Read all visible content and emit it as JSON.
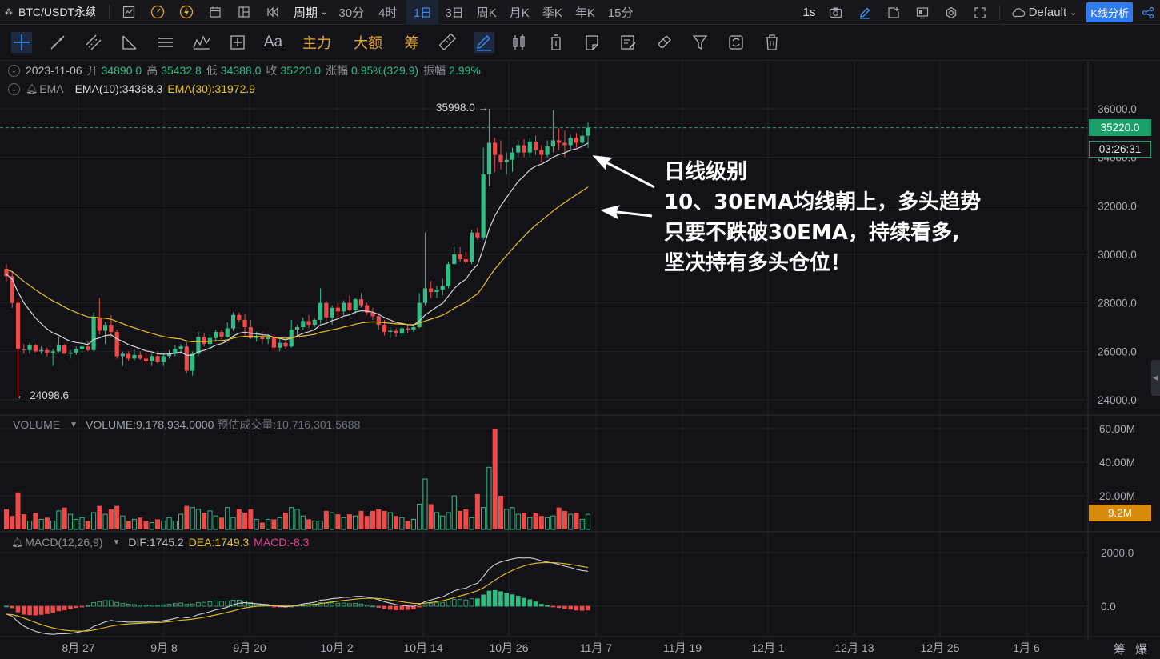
{
  "topbar": {
    "symbol": "BTC/USDT永续",
    "period_dropdown": "周期",
    "periods": [
      "30分",
      "4时",
      "1日",
      "3日",
      "周K",
      "月K",
      "季K",
      "年K",
      "15分"
    ],
    "active_period": "1日",
    "interval": "1s",
    "theme_label": "Default",
    "kline_button": "K线分析"
  },
  "toolbar": {
    "text_tool": "Aa",
    "zhuli": "主力",
    "dae": "大额",
    "chou": "筹"
  },
  "ohlc": {
    "date": "2023-11-06",
    "open_label": "开",
    "open": "34890.0",
    "high_label": "高",
    "high": "35432.8",
    "low_label": "低",
    "low": "34388.0",
    "close_label": "收",
    "close": "35220.0",
    "change_label": "涨幅",
    "change": "0.95%(329.9)",
    "amp_label": "振幅",
    "amp": "2.99%"
  },
  "ema": {
    "name": "EMA",
    "ema10": "EMA(10):34368.3",
    "ema30": "EMA(30):31972.9"
  },
  "price_axis": {
    "ticks": [
      "36000.0",
      "34000.0",
      "32000.0",
      "30000.0",
      "28000.0",
      "26000.0",
      "24000.0"
    ],
    "current_price": "35220.0",
    "countdown": "03:26:31",
    "high_marker": "35998.0 →",
    "low_marker": "← 24098.6"
  },
  "volume": {
    "name": "VOLUME",
    "value": "VOLUME:9,178,934.0000",
    "estimate": "预估成交量:10,716,301.5688",
    "ticks": [
      "60.00M",
      "40.00M",
      "20.00M"
    ],
    "current_tag": "9.2M"
  },
  "macd": {
    "name": "MACD(12,26,9)",
    "dif": "DIF:1745.2",
    "dea": "DEA:1749.3",
    "macd": "MACD:-8.3",
    "ticks": [
      "2000.0",
      "0.0"
    ]
  },
  "time_axis": [
    "8月 27",
    "9月 8",
    "9月 20",
    "10月 2",
    "10月 14",
    "10月 26",
    "11月 7",
    "11月 19",
    "12月 1",
    "12月 13",
    "12月 25",
    "1月 6"
  ],
  "bottom_right": [
    "筹",
    "爆"
  ],
  "annotation": {
    "line1": "日线级别",
    "line2": "10、30EMA均线朝上，多头趋势",
    "line3": "只要不跌破30EMA，持续看多,",
    "line4": "坚决持有多头仓位！"
  },
  "colors": {
    "up": "#2fbd85",
    "down": "#ef4a4a",
    "ema10": "#d4d4d8",
    "ema30": "#e8c21e",
    "accent": "#2f7bf5",
    "volume_tag": "#d98b0b"
  },
  "chart_data": {
    "type": "candlestick",
    "y_range": [
      23500,
      36500
    ],
    "candles": [
      {
        "o": 29400,
        "h": 29600,
        "l": 28900,
        "c": 29100
      },
      {
        "o": 29100,
        "h": 29300,
        "l": 27800,
        "c": 28000
      },
      {
        "o": 28000,
        "h": 28200,
        "l": 24098,
        "c": 26100
      },
      {
        "o": 26100,
        "h": 26300,
        "l": 25900,
        "c": 26050
      },
      {
        "o": 26050,
        "h": 26350,
        "l": 25900,
        "c": 26250
      },
      {
        "o": 26250,
        "h": 26300,
        "l": 25950,
        "c": 26000
      },
      {
        "o": 26000,
        "h": 26200,
        "l": 25900,
        "c": 26050
      },
      {
        "o": 26050,
        "h": 26150,
        "l": 25800,
        "c": 25950
      },
      {
        "o": 25950,
        "h": 26100,
        "l": 25400,
        "c": 26000
      },
      {
        "o": 26000,
        "h": 26600,
        "l": 25950,
        "c": 26250
      },
      {
        "o": 26250,
        "h": 26300,
        "l": 25900,
        "c": 25900
      },
      {
        "o": 25900,
        "h": 26050,
        "l": 25700,
        "c": 25950
      },
      {
        "o": 25950,
        "h": 26200,
        "l": 25850,
        "c": 26100
      },
      {
        "o": 26100,
        "h": 26250,
        "l": 25950,
        "c": 26200
      },
      {
        "o": 26200,
        "h": 26400,
        "l": 26000,
        "c": 26050
      },
      {
        "o": 26050,
        "h": 27600,
        "l": 26000,
        "c": 27400
      },
      {
        "o": 27400,
        "h": 28200,
        "l": 26700,
        "c": 26850
      },
      {
        "o": 26850,
        "h": 27200,
        "l": 26300,
        "c": 27100
      },
      {
        "o": 27100,
        "h": 27500,
        "l": 26600,
        "c": 26800
      },
      {
        "o": 26800,
        "h": 26900,
        "l": 25700,
        "c": 25800
      },
      {
        "o": 25800,
        "h": 26000,
        "l": 25400,
        "c": 25900
      },
      {
        "o": 25900,
        "h": 26000,
        "l": 25600,
        "c": 25700
      },
      {
        "o": 25700,
        "h": 26100,
        "l": 25600,
        "c": 25850
      },
      {
        "o": 25850,
        "h": 26000,
        "l": 25650,
        "c": 25700
      },
      {
        "o": 25700,
        "h": 25950,
        "l": 25500,
        "c": 25600
      },
      {
        "o": 25600,
        "h": 25900,
        "l": 25400,
        "c": 25800
      },
      {
        "o": 25800,
        "h": 26000,
        "l": 25500,
        "c": 25550
      },
      {
        "o": 25550,
        "h": 25900,
        "l": 25400,
        "c": 25800
      },
      {
        "o": 25800,
        "h": 26050,
        "l": 25700,
        "c": 25900
      },
      {
        "o": 25900,
        "h": 26250,
        "l": 25800,
        "c": 26100
      },
      {
        "o": 26100,
        "h": 26300,
        "l": 26000,
        "c": 26200
      },
      {
        "o": 26200,
        "h": 26400,
        "l": 25100,
        "c": 25200
      },
      {
        "o": 25200,
        "h": 26000,
        "l": 25000,
        "c": 25900
      },
      {
        "o": 25900,
        "h": 26800,
        "l": 25800,
        "c": 26600
      },
      {
        "o": 26600,
        "h": 26750,
        "l": 26200,
        "c": 26300
      },
      {
        "o": 26300,
        "h": 26700,
        "l": 26100,
        "c": 26550
      },
      {
        "o": 26550,
        "h": 26900,
        "l": 26400,
        "c": 26800
      },
      {
        "o": 26800,
        "h": 26900,
        "l": 26500,
        "c": 26600
      },
      {
        "o": 26600,
        "h": 27200,
        "l": 26550,
        "c": 26950
      },
      {
        "o": 26950,
        "h": 27600,
        "l": 26850,
        "c": 27500
      },
      {
        "o": 27500,
        "h": 27600,
        "l": 27200,
        "c": 27300
      },
      {
        "o": 27300,
        "h": 27550,
        "l": 26600,
        "c": 27000
      },
      {
        "o": 27000,
        "h": 27300,
        "l": 26500,
        "c": 26550
      },
      {
        "o": 26550,
        "h": 26800,
        "l": 26400,
        "c": 26600
      },
      {
        "o": 26600,
        "h": 26800,
        "l": 26300,
        "c": 26500
      },
      {
        "o": 26500,
        "h": 26700,
        "l": 26300,
        "c": 26600
      },
      {
        "o": 26600,
        "h": 26700,
        "l": 26000,
        "c": 26150
      },
      {
        "o": 26150,
        "h": 26500,
        "l": 26000,
        "c": 26350
      },
      {
        "o": 26350,
        "h": 26400,
        "l": 26100,
        "c": 26200
      },
      {
        "o": 26200,
        "h": 27300,
        "l": 26150,
        "c": 26900
      },
      {
        "o": 26900,
        "h": 27100,
        "l": 26600,
        "c": 27000
      },
      {
        "o": 27000,
        "h": 27400,
        "l": 26900,
        "c": 27250
      },
      {
        "o": 27250,
        "h": 27500,
        "l": 26950,
        "c": 27100
      },
      {
        "o": 27100,
        "h": 27350,
        "l": 27000,
        "c": 27300
      },
      {
        "o": 27300,
        "h": 28600,
        "l": 27150,
        "c": 28000
      },
      {
        "o": 28000,
        "h": 28100,
        "l": 27250,
        "c": 27400
      },
      {
        "o": 27400,
        "h": 27900,
        "l": 27100,
        "c": 27800
      },
      {
        "o": 27800,
        "h": 28000,
        "l": 27400,
        "c": 27650
      },
      {
        "o": 27650,
        "h": 28100,
        "l": 27500,
        "c": 28000
      },
      {
        "o": 28000,
        "h": 28300,
        "l": 27650,
        "c": 27700
      },
      {
        "o": 27700,
        "h": 28200,
        "l": 27550,
        "c": 28150
      },
      {
        "o": 28150,
        "h": 28400,
        "l": 27800,
        "c": 27900
      },
      {
        "o": 27900,
        "h": 28000,
        "l": 27500,
        "c": 27600
      },
      {
        "o": 27600,
        "h": 27800,
        "l": 27300,
        "c": 27450
      },
      {
        "o": 27450,
        "h": 27600,
        "l": 26900,
        "c": 27100
      },
      {
        "o": 27100,
        "h": 27300,
        "l": 26650,
        "c": 26800
      },
      {
        "o": 26800,
        "h": 27000,
        "l": 26550,
        "c": 26850
      },
      {
        "o": 26850,
        "h": 26950,
        "l": 26600,
        "c": 26750
      },
      {
        "o": 26750,
        "h": 27000,
        "l": 26600,
        "c": 26950
      },
      {
        "o": 26950,
        "h": 27100,
        "l": 26750,
        "c": 26900
      },
      {
        "o": 26900,
        "h": 27100,
        "l": 26800,
        "c": 27000
      },
      {
        "o": 27000,
        "h": 28400,
        "l": 26950,
        "c": 28000
      },
      {
        "o": 28000,
        "h": 30900,
        "l": 27900,
        "c": 28600
      },
      {
        "o": 28600,
        "h": 28900,
        "l": 28200,
        "c": 28450
      },
      {
        "o": 28450,
        "h": 28700,
        "l": 28200,
        "c": 28550
      },
      {
        "o": 28550,
        "h": 29000,
        "l": 28300,
        "c": 28700
      },
      {
        "o": 28700,
        "h": 29700,
        "l": 28600,
        "c": 29600
      },
      {
        "o": 29600,
        "h": 30300,
        "l": 29600,
        "c": 30000
      },
      {
        "o": 30000,
        "h": 30300,
        "l": 29700,
        "c": 29800
      },
      {
        "o": 29800,
        "h": 30100,
        "l": 29600,
        "c": 29700
      },
      {
        "o": 29700,
        "h": 31000,
        "l": 29600,
        "c": 30900
      },
      {
        "o": 30900,
        "h": 31100,
        "l": 30600,
        "c": 30700
      },
      {
        "o": 30700,
        "h": 34400,
        "l": 30600,
        "c": 33300
      },
      {
        "o": 33300,
        "h": 35998,
        "l": 32800,
        "c": 34600
      },
      {
        "o": 34600,
        "h": 34800,
        "l": 33400,
        "c": 34100
      },
      {
        "o": 34100,
        "h": 34700,
        "l": 33500,
        "c": 33800
      },
      {
        "o": 33800,
        "h": 34200,
        "l": 33300,
        "c": 33900
      },
      {
        "o": 33900,
        "h": 34400,
        "l": 33400,
        "c": 34200
      },
      {
        "o": 34200,
        "h": 34700,
        "l": 34000,
        "c": 34500
      },
      {
        "o": 34500,
        "h": 34750,
        "l": 34000,
        "c": 34200
      },
      {
        "o": 34200,
        "h": 34800,
        "l": 34000,
        "c": 34650
      },
      {
        "o": 34650,
        "h": 34900,
        "l": 34100,
        "c": 34300
      },
      {
        "o": 34300,
        "h": 34500,
        "l": 33800,
        "c": 34100
      },
      {
        "o": 34100,
        "h": 34700,
        "l": 34000,
        "c": 34450
      },
      {
        "o": 34450,
        "h": 35950,
        "l": 34200,
        "c": 34700
      },
      {
        "o": 34700,
        "h": 35200,
        "l": 34300,
        "c": 34600
      },
      {
        "o": 34600,
        "h": 35100,
        "l": 34000,
        "c": 34500
      },
      {
        "o": 34500,
        "h": 34900,
        "l": 34300,
        "c": 34800
      },
      {
        "o": 34800,
        "h": 35000,
        "l": 34400,
        "c": 34600
      },
      {
        "o": 34600,
        "h": 35100,
        "l": 34400,
        "c": 34890
      },
      {
        "o": 34890,
        "h": 35432.8,
        "l": 34388,
        "c": 35220
      }
    ],
    "volumes_m": [
      12,
      8,
      22,
      9,
      5,
      10,
      6,
      7,
      5,
      11,
      13,
      9,
      6,
      7,
      5,
      10,
      14,
      9,
      12,
      14,
      8,
      5,
      6,
      7,
      5,
      4,
      6,
      5,
      7,
      5,
      9,
      14,
      13,
      12,
      10,
      11,
      8,
      7,
      13,
      7,
      12,
      10,
      12,
      6,
      4,
      6,
      6,
      7,
      10,
      13,
      12,
      8,
      6,
      5,
      5,
      11,
      10,
      9,
      7,
      9,
      8,
      11,
      8,
      11,
      12,
      11,
      10,
      8,
      7,
      5,
      6,
      15,
      30,
      15,
      10,
      8,
      10,
      20,
      11,
      12,
      7,
      21,
      13,
      37,
      60,
      20,
      12,
      13,
      9,
      10,
      7,
      10,
      8,
      7,
      8,
      13,
      11,
      9,
      10,
      6,
      9
    ]
  }
}
